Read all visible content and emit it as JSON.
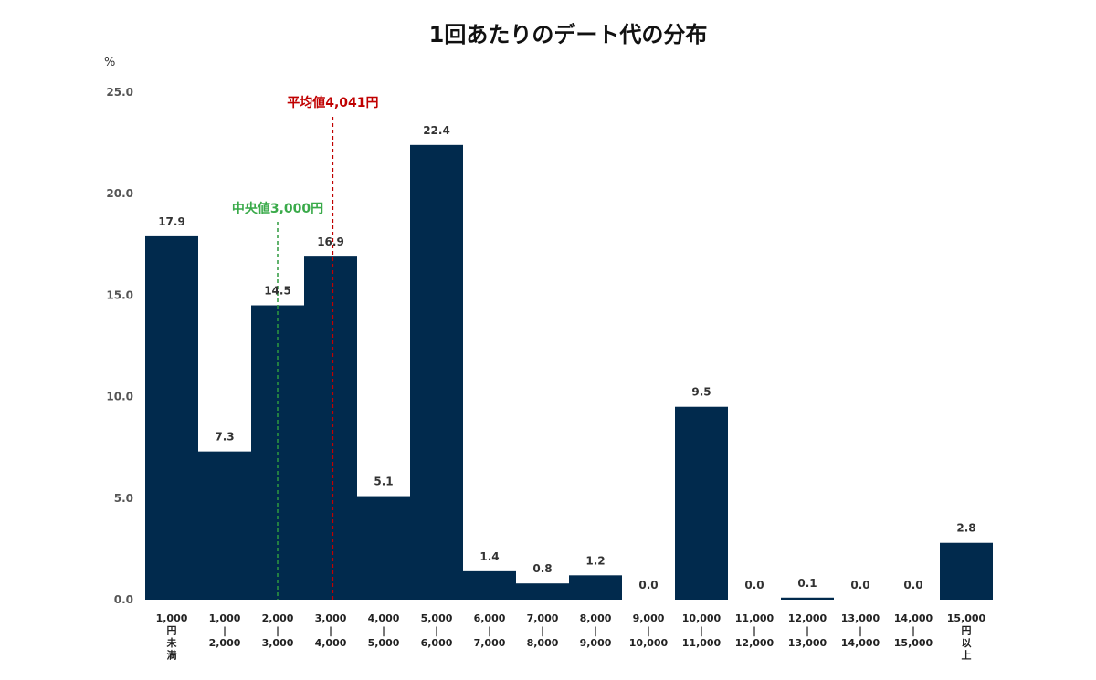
{
  "chart_data": {
    "type": "bar",
    "title": "1回あたりのデート代の分布",
    "ylabel": "%",
    "xlabel": "",
    "ylim": [
      0,
      25
    ],
    "yticks": [
      "0.0",
      "5.0",
      "10.0",
      "15.0",
      "20.0",
      "25.0"
    ],
    "yticks_values": [
      0,
      5,
      10,
      15,
      20,
      25
    ],
    "grid": false,
    "categories": [
      [
        "1,000",
        "円",
        "未",
        "満"
      ],
      [
        "1,000",
        "|",
        "2,000"
      ],
      [
        "2,000",
        "|",
        "3,000"
      ],
      [
        "3,000",
        "|",
        "4,000"
      ],
      [
        "4,000",
        "|",
        "5,000"
      ],
      [
        "5,000",
        "|",
        "6,000"
      ],
      [
        "6,000",
        "|",
        "7,000"
      ],
      [
        "7,000",
        "|",
        "8,000"
      ],
      [
        "8,000",
        "|",
        "9,000"
      ],
      [
        "9,000",
        "|",
        "10,000"
      ],
      [
        "10,000",
        "|",
        "11,000"
      ],
      [
        "11,000",
        "|",
        "12,000"
      ],
      [
        "12,000",
        "|",
        "13,000"
      ],
      [
        "13,000",
        "|",
        "14,000"
      ],
      [
        "14,000",
        "|",
        "15,000"
      ],
      [
        "15,000",
        "円",
        "以",
        "上"
      ]
    ],
    "values": [
      17.9,
      7.3,
      14.5,
      16.9,
      5.1,
      22.4,
      1.4,
      0.8,
      1.2,
      0.0,
      9.5,
      0.0,
      0.1,
      0.0,
      0.0,
      2.8
    ],
    "value_labels": [
      "17.9",
      "7.3",
      "14.5",
      "16.9",
      "5.1",
      "22.4",
      "1.4",
      "0.8",
      "1.2",
      "0.0",
      "9.5",
      "0.0",
      "0.1",
      "0.0",
      "0.0",
      "2.8"
    ],
    "reference_lines": [
      {
        "name": "median",
        "label": "中央値3,000円",
        "value": 3000,
        "color": "#2e9a3e"
      },
      {
        "name": "mean",
        "label": "平均値4,041円",
        "value": 4041,
        "color": "#c00000"
      }
    ],
    "bar_color": "#012a4d"
  }
}
